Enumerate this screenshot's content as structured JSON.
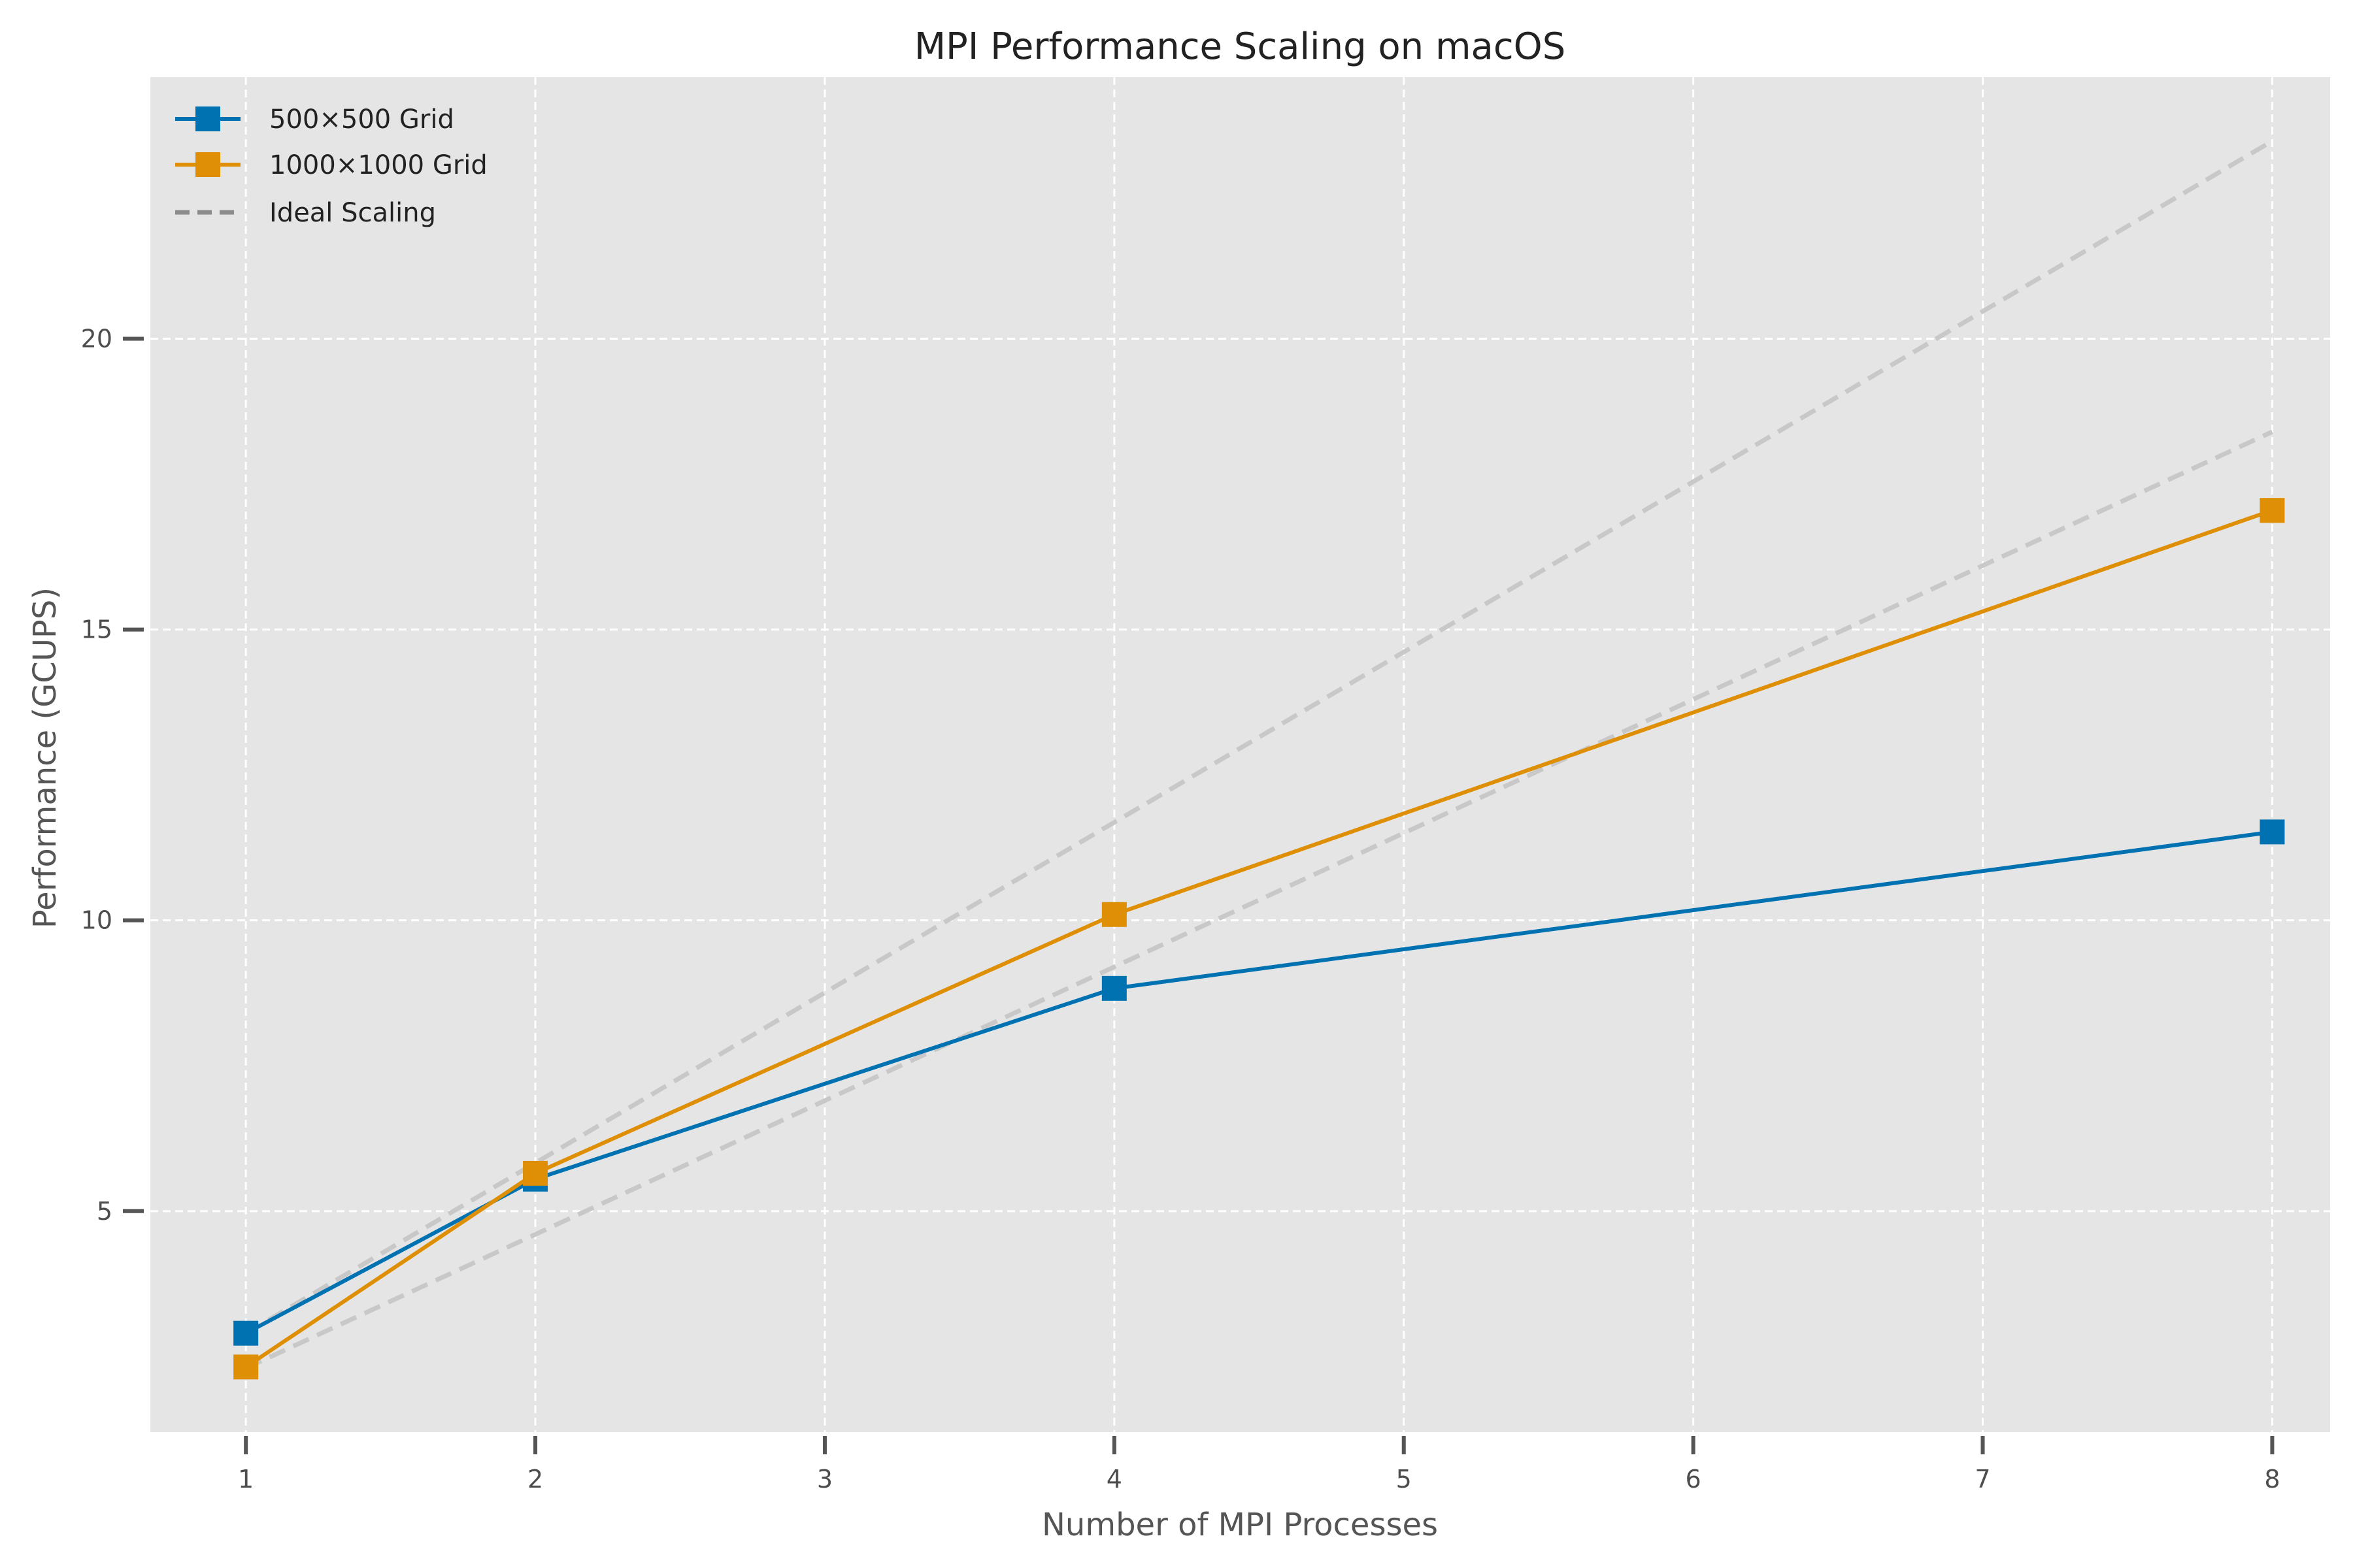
{
  "chart_data": {
    "type": "line",
    "title": "MPI Performance Scaling on macOS",
    "xlabel": "Number of MPI Processes",
    "ylabel": "Performance (GCUPS)",
    "xlim": [
      0.67,
      8.2
    ],
    "ylim": [
      1.2,
      24.5
    ],
    "xticks": [
      1,
      2,
      3,
      4,
      5,
      6,
      7,
      8
    ],
    "xtick_labels": [
      "1",
      "2",
      "3",
      "4",
      "5",
      "6",
      "7",
      "8"
    ],
    "yticks": [
      5,
      10,
      15,
      20
    ],
    "ytick_labels": [
      "5",
      "10",
      "15",
      "20"
    ],
    "grid": true,
    "legend_position": "top-left",
    "series": [
      {
        "name": "500×500 Grid",
        "x": [
          1,
          2,
          4,
          8
        ],
        "y": [
          2.9,
          5.55,
          8.83,
          11.52
        ],
        "color": "#0072b2",
        "marker": "square",
        "style": "solid"
      },
      {
        "name": "1000×1000 Grid",
        "x": [
          1,
          2,
          4,
          8
        ],
        "y": [
          2.32,
          5.65,
          10.1,
          17.05
        ],
        "color": "#de8f05",
        "marker": "square",
        "style": "solid"
      },
      {
        "name": "Ideal Scaling",
        "x": [
          1,
          8
        ],
        "y": [
          2.9,
          23.4
        ],
        "color": "#c8c8c8",
        "legend_color": "#8c8c8c",
        "style": "dashed"
      },
      {
        "name": "",
        "x": [
          1,
          8
        ],
        "y": [
          2.3,
          18.4
        ],
        "color": "#c8c8c8",
        "style": "dashed"
      }
    ]
  }
}
